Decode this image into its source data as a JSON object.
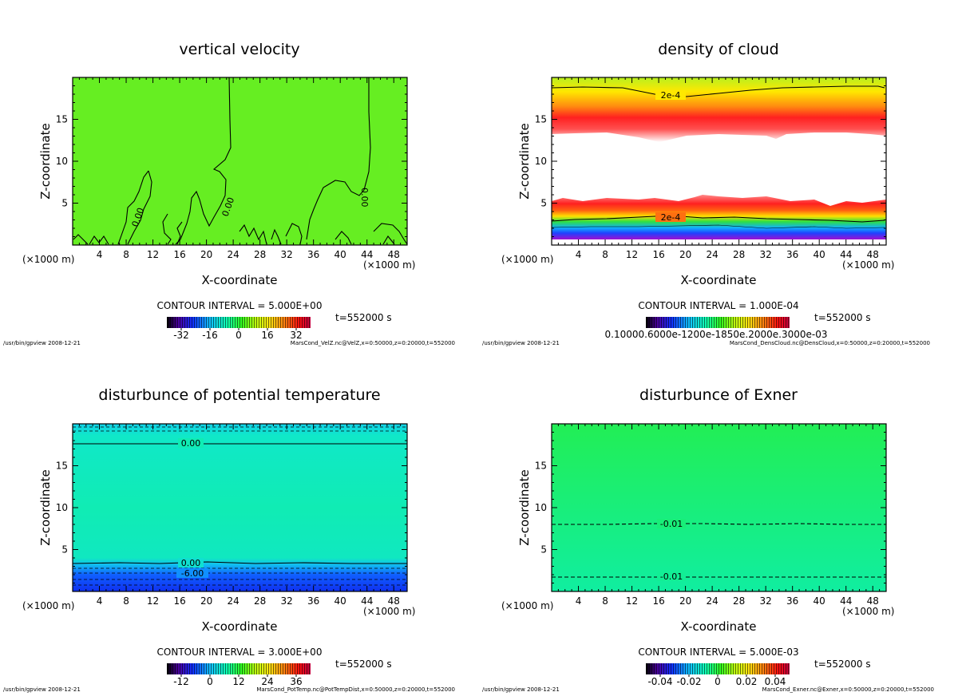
{
  "panels": [
    {
      "title": "vertical velocity",
      "xlabel": "X-coordinate",
      "ylabel": "Z-coordinate",
      "x_unit": "(×1000 m)",
      "x_ticks": [
        "4",
        "8",
        "12",
        "16",
        "20",
        "24",
        "28",
        "32",
        "36",
        "40",
        "44",
        "48"
      ],
      "y_ticks": [
        "5",
        "10",
        "15"
      ],
      "contour_interval": "CONTOUR INTERVAL = 5.000E+00",
      "time": "t=552000 s",
      "colorbar_ticks": [
        "-32",
        "-16",
        "0",
        "16",
        "32"
      ],
      "footer_left": "/usr/bin/gpview  2008-12-21",
      "footer_right": "MarsCond_VelZ.nc@VelZ,x=0:50000,z=0:20000,t=552000",
      "contour_labels": [
        "0.00",
        "0.00",
        "0.00"
      ]
    },
    {
      "title": "density of cloud",
      "xlabel": "X-coordinate",
      "ylabel": "Z-coordinate",
      "x_unit": "(×1000 m)",
      "x_ticks": [
        "4",
        "8",
        "12",
        "16",
        "20",
        "24",
        "28",
        "32",
        "36",
        "40",
        "44",
        "48"
      ],
      "y_ticks": [
        "5",
        "10",
        "15"
      ],
      "contour_interval": "CONTOUR INTERVAL = 1.000E-04",
      "time": "t=552000 s",
      "colorbar_ticks_text": "0.10000.6000e-1200e-1850e.2000e.3000e-03",
      "footer_left": "/usr/bin/gpview  2008-12-21",
      "footer_right": "MarsCond_DensCloud.nc@DensCloud,x=0:50000,z=0:20000,t=552000",
      "contour_labels": [
        "2e-4",
        "2e-4"
      ]
    },
    {
      "title": "disturbunce of potential temperature",
      "xlabel": "X-coordinate",
      "ylabel": "Z-coordinate",
      "x_unit": "(×1000 m)",
      "x_ticks": [
        "4",
        "8",
        "12",
        "16",
        "20",
        "24",
        "28",
        "32",
        "36",
        "40",
        "44",
        "48"
      ],
      "y_ticks": [
        "5",
        "10",
        "15"
      ],
      "contour_interval": "CONTOUR INTERVAL = 3.000E+00",
      "time": "t=552000 s",
      "colorbar_ticks": [
        "-12",
        "0",
        "12",
        "24",
        "36"
      ],
      "footer_left": "/usr/bin/gpview  2008-12-21",
      "footer_right": "MarsCond_PotTemp.nc@PotTempDist,x=0:50000,z=0:20000,t=552000",
      "contour_labels": [
        "0.00",
        "0.00",
        "-6.00"
      ]
    },
    {
      "title": "disturbunce of Exner",
      "xlabel": "X-coordinate",
      "ylabel": "Z-coordinate",
      "x_unit": "(×1000 m)",
      "x_ticks": [
        "4",
        "8",
        "12",
        "16",
        "20",
        "24",
        "28",
        "32",
        "36",
        "40",
        "44",
        "48"
      ],
      "y_ticks": [
        "5",
        "10",
        "15"
      ],
      "contour_interval": "CONTOUR INTERVAL = 5.000E-03",
      "time": "t=552000 s",
      "colorbar_ticks": [
        "-0.04",
        "-0.02",
        "0",
        "0.02",
        "0.04"
      ],
      "footer_left": "/usr/bin/gpview  2008-12-21",
      "footer_right": "MarsCond_Exner.nc@Exner,x=0:50000,z=0:20000,t=552000",
      "contour_labels": [
        "-0.01",
        "-0.01"
      ]
    }
  ],
  "chart_data": [
    {
      "type": "heatmap",
      "title": "vertical velocity",
      "xlabel": "X-coordinate",
      "ylabel": "Z-coordinate",
      "xlim": [
        0,
        50
      ],
      "ylim": [
        0,
        20
      ],
      "x_ticks": [
        4,
        8,
        12,
        16,
        20,
        24,
        28,
        32,
        36,
        40,
        44,
        48
      ],
      "y_ticks": [
        5,
        10,
        15
      ],
      "contour_interval": 5.0,
      "colorbar_ticks": [
        -32,
        -16,
        0,
        16,
        32
      ],
      "contour_levels_labeled": [
        0.0
      ]
    },
    {
      "type": "heatmap",
      "title": "density of cloud",
      "xlabel": "X-coordinate",
      "ylabel": "Z-coordinate",
      "xlim": [
        0,
        50
      ],
      "ylim": [
        0,
        20
      ],
      "x_ticks": [
        4,
        8,
        12,
        16,
        20,
        24,
        28,
        32,
        36,
        40,
        44,
        48
      ],
      "y_ticks": [
        5,
        10,
        15
      ],
      "contour_interval": 0.0001,
      "contour_levels_labeled": [
        0.0002
      ]
    },
    {
      "type": "heatmap",
      "title": "disturbunce of potential temperature",
      "xlabel": "X-coordinate",
      "ylabel": "Z-coordinate",
      "xlim": [
        0,
        50
      ],
      "ylim": [
        0,
        20
      ],
      "x_ticks": [
        4,
        8,
        12,
        16,
        20,
        24,
        28,
        32,
        36,
        40,
        44,
        48
      ],
      "y_ticks": [
        5,
        10,
        15
      ],
      "contour_interval": 3.0,
      "colorbar_ticks": [
        -12,
        0,
        12,
        24,
        36
      ],
      "contour_levels_labeled": [
        0.0,
        0.0,
        -6.0
      ]
    },
    {
      "type": "heatmap",
      "title": "disturbunce of Exner",
      "xlabel": "X-coordinate",
      "ylabel": "Z-coordinate",
      "xlim": [
        0,
        50
      ],
      "ylim": [
        0,
        20
      ],
      "x_ticks": [
        4,
        8,
        12,
        16,
        20,
        24,
        28,
        32,
        36,
        40,
        44,
        48
      ],
      "y_ticks": [
        5,
        10,
        15
      ],
      "contour_interval": 0.005,
      "colorbar_ticks": [
        -0.04,
        -0.02,
        0,
        0.02,
        0.04
      ],
      "contour_levels_labeled": [
        -0.01,
        -0.01
      ]
    }
  ],
  "colors": {
    "velocity_field": "#66ee22",
    "exner_field": "#22ee66",
    "pottemp_field": "#11eeaa",
    "cloud_red": "#ff1010",
    "cloud_yellow": "#ffee00",
    "contour": "#000000"
  }
}
